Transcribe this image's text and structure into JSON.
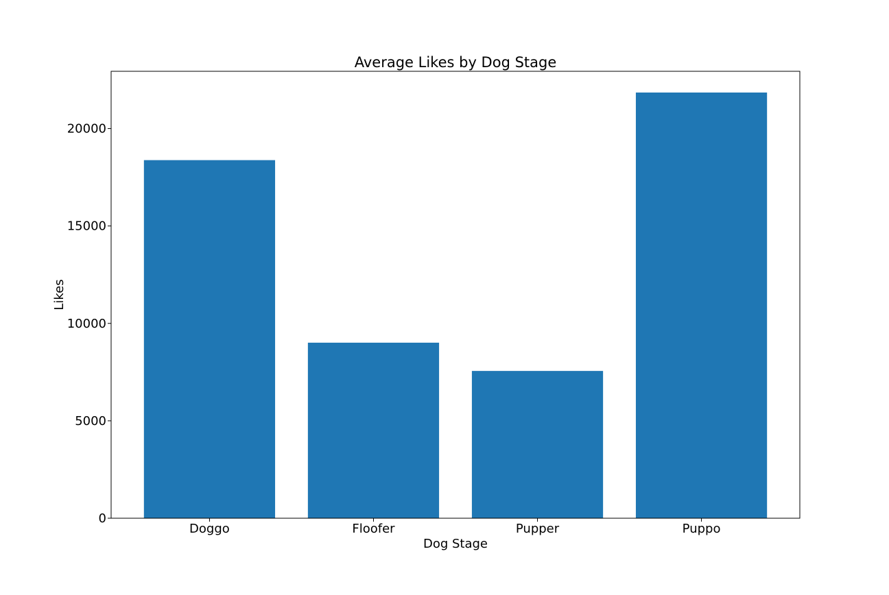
{
  "chart_data": {
    "type": "bar",
    "title": "Average Likes by Dog Stage",
    "xlabel": "Dog Stage",
    "ylabel": "Likes",
    "categories": [
      "Doggo",
      "Floofer",
      "Pupper",
      "Puppo"
    ],
    "values": [
      18380,
      9010,
      7560,
      21850
    ],
    "ylim": [
      0,
      22940
    ],
    "yticks": [
      0,
      5000,
      10000,
      15000,
      20000
    ],
    "ytick_labels": [
      "0",
      "5000",
      "10000",
      "15000",
      "20000"
    ],
    "grid": false,
    "legend": "none",
    "bar_color": "#1f77b4"
  }
}
